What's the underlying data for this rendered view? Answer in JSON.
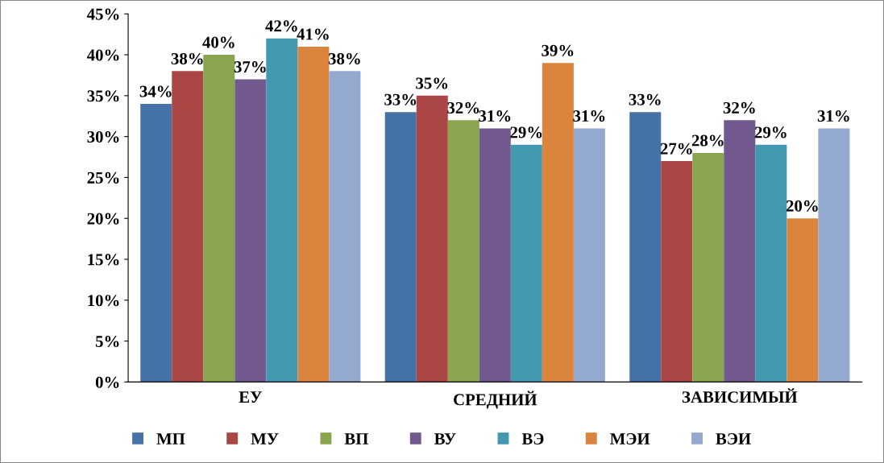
{
  "chart_data": {
    "type": "bar",
    "categories": [
      "ЕУ",
      "СРЕДНИЙ",
      "ЗАВИСИМЫЙ"
    ],
    "series": [
      {
        "name": "МП",
        "color": "#4572a7",
        "values": [
          34,
          33,
          33
        ],
        "value_labels": [
          "34%",
          "33%",
          "33%"
        ]
      },
      {
        "name": "МУ",
        "color": "#aa4643",
        "values": [
          38,
          35,
          27
        ],
        "value_labels": [
          "38%",
          "35%",
          "27%"
        ]
      },
      {
        "name": "ВП",
        "color": "#89a54e",
        "values": [
          40,
          32,
          28
        ],
        "value_labels": [
          "40%",
          "32%",
          "28%"
        ]
      },
      {
        "name": "ВУ",
        "color": "#71588f",
        "values": [
          37,
          31,
          32
        ],
        "value_labels": [
          "37%",
          "31%",
          "32%"
        ]
      },
      {
        "name": "ВЭ",
        "color": "#4198af",
        "values": [
          42,
          29,
          29
        ],
        "value_labels": [
          "42%",
          "29%",
          "29%"
        ]
      },
      {
        "name": "МЭИ",
        "color": "#db843d",
        "values": [
          41,
          39,
          20
        ],
        "value_labels": [
          "41%",
          "39%",
          "20%"
        ]
      },
      {
        "name": "ВЭИ",
        "color": "#93a9cf",
        "values": [
          38,
          31,
          31
        ],
        "value_labels": [
          "38%",
          "31%",
          "31%"
        ]
      }
    ],
    "ylim": [
      0,
      45
    ],
    "yticks": [
      {
        "value": 0,
        "label": "0%"
      },
      {
        "value": 5,
        "label": "5%"
      },
      {
        "value": 10,
        "label": "10%"
      },
      {
        "value": 15,
        "label": "15%"
      },
      {
        "value": 20,
        "label": "20%"
      },
      {
        "value": 25,
        "label": "25%"
      },
      {
        "value": 30,
        "label": "30%"
      },
      {
        "value": 35,
        "label": "35%"
      },
      {
        "value": 40,
        "label": "40%"
      },
      {
        "value": 45,
        "label": "45%"
      }
    ],
    "grid": false,
    "legend": "bottom"
  }
}
